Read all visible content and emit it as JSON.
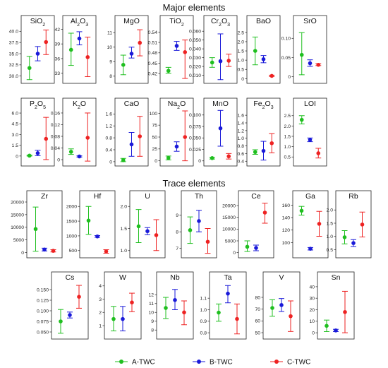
{
  "section_titles": {
    "major": "Major elements",
    "trace": "Trace elements"
  },
  "legend": [
    {
      "label": "A-TWC",
      "color": "#1fbf1f"
    },
    {
      "label": "B-TWC",
      "color": "#1a1ad9"
    },
    {
      "label": "C-TWC",
      "color": "#ee2222"
    }
  ],
  "chart_data": [
    {
      "type": "scatter",
      "title": "SiO2",
      "title_parts": [
        {
          "t": "SiO"
        },
        {
          "t": "2",
          "sub": true
        }
      ],
      "ylim": [
        29,
        41
      ],
      "yticks": [
        "30.0",
        "32.5",
        "35.0",
        "37.5",
        "40.0"
      ],
      "series": [
        {
          "name": "A-TWC",
          "mean": 31.8,
          "low": 29.2,
          "high": 34.4
        },
        {
          "name": "B-TWC",
          "mean": 35.0,
          "low": 33.4,
          "high": 36.6
        },
        {
          "name": "C-TWC",
          "mean": 37.6,
          "low": 34.8,
          "high": 40.3
        }
      ]
    },
    {
      "type": "scatter",
      "title": "Al2O3",
      "title_parts": [
        {
          "t": "Al"
        },
        {
          "t": "2",
          "sub": true
        },
        {
          "t": "O"
        },
        {
          "t": "3",
          "sub": true
        }
      ],
      "ylim": [
        31.5,
        42.5
      ],
      "yticks": [
        "33",
        "36",
        "39",
        "42"
      ],
      "series": [
        {
          "name": "A-TWC",
          "mean": 37.8,
          "low": 34.6,
          "high": 41.2
        },
        {
          "name": "B-TWC",
          "mean": 40.1,
          "low": 38.8,
          "high": 41.5
        },
        {
          "name": "C-TWC",
          "mean": 36.3,
          "low": 32.3,
          "high": 40.4
        }
      ]
    },
    {
      "type": "scatter",
      "title": "MgO",
      "title_parts": [
        {
          "t": "MgO"
        }
      ],
      "ylim": [
        7.7,
        11.4
      ],
      "yticks": [
        "8",
        "9",
        "10",
        "11"
      ],
      "series": [
        {
          "name": "A-TWC",
          "mean": 8.78,
          "low": 8.1,
          "high": 9.45
        },
        {
          "name": "B-TWC",
          "mean": 9.55,
          "low": 9.25,
          "high": 10.0
        },
        {
          "name": "C-TWC",
          "mean": 10.3,
          "low": 9.4,
          "high": 11.2
        }
      ]
    },
    {
      "type": "scatter",
      "title": "TiO2",
      "title_parts": [
        {
          "t": "TiO"
        },
        {
          "t": "2",
          "sub": true
        }
      ],
      "ylim": [
        0.4,
        0.555
      ],
      "yticks": [
        "0.42",
        "0.45",
        "0.48",
        "0.51",
        "0.54"
      ],
      "series": [
        {
          "name": "A-TWC",
          "mean": 0.428,
          "low": 0.421,
          "high": 0.438
        },
        {
          "name": "B-TWC",
          "mean": 0.5,
          "low": 0.487,
          "high": 0.513
        },
        {
          "name": "C-TWC",
          "mean": 0.482,
          "low": 0.406,
          "high": 0.517
        }
      ]
    },
    {
      "type": "scatter",
      "title": "Cr2O3",
      "title_parts": [
        {
          "t": "Cr"
        },
        {
          "t": "2",
          "sub": true
        },
        {
          "t": "O"
        },
        {
          "t": "3",
          "sub": true
        }
      ],
      "ylim": [
        0.004,
        0.065
      ],
      "yticks": [
        "0.010",
        "0.020",
        "0.030",
        "0.040",
        "0.050",
        "0.060"
      ],
      "series": [
        {
          "name": "A-TWC",
          "mean": 0.0245,
          "low": 0.019,
          "high": 0.03
        },
        {
          "name": "B-TWC",
          "mean": 0.026,
          "low": 0.005,
          "high": 0.057
        },
        {
          "name": "C-TWC",
          "mean": 0.0265,
          "low": 0.02,
          "high": 0.034
        }
      ]
    },
    {
      "type": "scatter",
      "title": "BaO",
      "title_parts": [
        {
          "t": "BaO"
        }
      ],
      "ylim": [
        -0.1,
        2.8
      ],
      "yticks": [
        "0",
        "0.5",
        "1.0",
        "1.5",
        "2.0",
        "2.5"
      ],
      "series": [
        {
          "name": "A-TWC",
          "mean": 1.5,
          "low": 0.75,
          "high": 2.25
        },
        {
          "name": "B-TWC",
          "mean": 1.05,
          "low": 0.86,
          "high": 1.25
        },
        {
          "name": "C-TWC",
          "mean": 0.15,
          "low": 0.12,
          "high": 0.19
        }
      ]
    },
    {
      "type": "scatter",
      "title": "SrO",
      "title_parts": [
        {
          "t": "SrO"
        }
      ],
      "ylim": [
        -0.01,
        0.13
      ],
      "yticks": [
        "0",
        "0.05",
        "0.10"
      ],
      "series": [
        {
          "name": "A-TWC",
          "mean": 0.057,
          "low": 0.005,
          "high": 0.115
        },
        {
          "name": "B-TWC",
          "mean": 0.035,
          "low": 0.027,
          "high": 0.044
        },
        {
          "name": "C-TWC",
          "mean": 0.031,
          "low": 0.029,
          "high": 0.034
        }
      ]
    },
    {
      "type": "scatter",
      "title": "P2O5",
      "title_parts": [
        {
          "t": "P"
        },
        {
          "t": "2",
          "sub": true
        },
        {
          "t": "O"
        },
        {
          "t": "5",
          "sub": true
        }
      ],
      "ylim": [
        -1,
        6.5
      ],
      "yticks": [
        "0",
        "1.5",
        "3.0",
        "4.5",
        "6.0"
      ],
      "series": [
        {
          "name": "A-TWC",
          "mean": 0.05,
          "low": 0.0,
          "high": 0.12
        },
        {
          "name": "B-TWC",
          "mean": 0.4,
          "low": 0.05,
          "high": 0.8
        },
        {
          "name": "C-TWC",
          "mean": 2.4,
          "low": -0.5,
          "high": 5.4
        }
      ]
    },
    {
      "type": "scatter",
      "title": "K2O",
      "title_parts": [
        {
          "t": "K"
        },
        {
          "t": "2",
          "sub": true
        },
        {
          "t": "O"
        }
      ],
      "ylim": [
        -0.012,
        0.172
      ],
      "yticks": [
        "0",
        "0.04",
        "0.08",
        "0.12",
        "0.16"
      ],
      "series": [
        {
          "name": "A-TWC",
          "mean": 0.027,
          "low": 0.018,
          "high": 0.037
        },
        {
          "name": "B-TWC",
          "mean": 0.011,
          "low": 0.009,
          "high": 0.013
        },
        {
          "name": "C-TWC",
          "mean": 0.075,
          "low": -0.005,
          "high": 0.16
        }
      ]
    },
    {
      "type": "scatter",
      "title": "CaO",
      "title_parts": [
        {
          "t": "CaO"
        }
      ],
      "ylim": [
        -0.05,
        1.75
      ],
      "yticks": [
        "0",
        "0.4",
        "0.8",
        "1.2",
        "1.6"
      ],
      "series": [
        {
          "name": "A-TWC",
          "mean": 0.05,
          "low": 0.0,
          "high": 0.11
        },
        {
          "name": "B-TWC",
          "mean": 0.58,
          "low": 0.18,
          "high": 0.98
        },
        {
          "name": "C-TWC",
          "mean": 0.85,
          "low": 0.18,
          "high": 1.52
        }
      ]
    },
    {
      "type": "scatter",
      "title": "Na2O",
      "title_parts": [
        {
          "t": "Na"
        },
        {
          "t": "2",
          "sub": true
        },
        {
          "t": "O"
        }
      ],
      "ylim": [
        -5,
        108
      ],
      "yticks": [
        "0",
        "25",
        "50",
        "75",
        "100"
      ],
      "series": [
        {
          "name": "A-TWC",
          "mean": 6,
          "low": 2,
          "high": 10
        },
        {
          "name": "B-TWC",
          "mean": 30,
          "low": 20,
          "high": 40
        },
        {
          "name": "C-TWC",
          "mean": 50,
          "low": 0,
          "high": 105
        }
      ]
    },
    {
      "type": "scatter",
      "title": "MnO",
      "title_parts": [
        {
          "t": "MnO"
        }
      ],
      "ylim": [
        -0.005,
        0.112
      ],
      "yticks": [
        "0",
        "0.025",
        "0.050",
        "0.075",
        "0.100"
      ],
      "series": [
        {
          "name": "A-TWC",
          "mean": 0.006,
          "low": 0.004,
          "high": 0.008
        },
        {
          "name": "B-TWC",
          "mean": 0.071,
          "low": 0.032,
          "high": 0.11
        },
        {
          "name": "C-TWC",
          "mean": 0.01,
          "low": 0.004,
          "high": 0.016
        }
      ]
    },
    {
      "type": "scatter",
      "title": "Fe2O3",
      "title_parts": [
        {
          "t": "Fe"
        },
        {
          "t": "2",
          "sub": true
        },
        {
          "t": "O"
        },
        {
          "t": "3",
          "sub": true
        }
      ],
      "ylim": [
        0.35,
        1.75
      ],
      "yticks": [
        "0.4",
        "0.6",
        "0.8",
        "1.0",
        "1.2",
        "1.4",
        "1.6"
      ],
      "series": [
        {
          "name": "A-TWC",
          "mean": 0.64,
          "low": 0.58,
          "high": 0.7
        },
        {
          "name": "B-TWC",
          "mean": 0.67,
          "low": 0.43,
          "high": 0.92
        },
        {
          "name": "C-TWC",
          "mean": 0.87,
          "low": 0.62,
          "high": 1.12
        }
      ]
    },
    {
      "type": "scatter",
      "title": "LOI",
      "title_parts": [
        {
          "t": "LOI"
        }
      ],
      "ylim": [
        0.2,
        2.8
      ],
      "yticks": [
        "0.5",
        "1.0",
        "1.5",
        "2.0",
        "2.5"
      ],
      "series": [
        {
          "name": "A-TWC",
          "mean": 2.3,
          "low": 2.1,
          "high": 2.5
        },
        {
          "name": "B-TWC",
          "mean": 1.33,
          "low": 1.24,
          "high": 1.42
        },
        {
          "name": "C-TWC",
          "mean": 0.68,
          "low": 0.45,
          "high": 0.92
        }
      ]
    },
    {
      "type": "scatter",
      "title": "Zr",
      "title_parts": [
        {
          "t": "Zr"
        }
      ],
      "ylim": [
        -1000,
        20000
      ],
      "yticks": [
        "0",
        "5000",
        "10000",
        "15000",
        "20000"
      ],
      "series": [
        {
          "name": "A-TWC",
          "mean": 9300,
          "low": 500,
          "high": 18000
        },
        {
          "name": "B-TWC",
          "mean": 1150,
          "low": 600,
          "high": 1700
        },
        {
          "name": "C-TWC",
          "mean": 650,
          "low": 200,
          "high": 1100
        }
      ]
    },
    {
      "type": "scatter",
      "title": "Hf",
      "title_parts": [
        {
          "t": "Hf"
        }
      ],
      "ylim": [
        350,
        2150
      ],
      "yticks": [
        "500",
        "1000",
        "1500",
        "2000"
      ],
      "series": [
        {
          "name": "A-TWC",
          "mean": 1520,
          "low": 1050,
          "high": 2000
        },
        {
          "name": "B-TWC",
          "mean": 980,
          "low": 950,
          "high": 1010
        },
        {
          "name": "C-TWC",
          "mean": 470,
          "low": 410,
          "high": 530
        }
      ]
    },
    {
      "type": "scatter",
      "title": "U",
      "title_parts": [
        {
          "t": "U"
        }
      ],
      "ylim": [
        0.9,
        2.1
      ],
      "yticks": [
        "1.0",
        "1.5",
        "2.0"
      ],
      "series": [
        {
          "name": "A-TWC",
          "mean": 1.55,
          "low": 1.18,
          "high": 1.93
        },
        {
          "name": "B-TWC",
          "mean": 1.44,
          "low": 1.36,
          "high": 1.52
        },
        {
          "name": "C-TWC",
          "mean": 1.35,
          "low": 1.0,
          "high": 1.7
        }
      ]
    },
    {
      "type": "scatter",
      "title": "Th",
      "title_parts": [
        {
          "t": "Th"
        }
      ],
      "ylim": [
        6.6,
        9.8
      ],
      "yticks": [
        "7",
        "8",
        "9"
      ],
      "series": [
        {
          "name": "A-TWC",
          "mean": 8.1,
          "low": 7.3,
          "high": 8.9
        },
        {
          "name": "B-TWC",
          "mean": 8.65,
          "low": 8.0,
          "high": 9.3
        },
        {
          "name": "C-TWC",
          "mean": 7.4,
          "low": 6.7,
          "high": 8.2
        }
      ]
    },
    {
      "type": "scatter",
      "title": "Ce",
      "title_parts": [
        {
          "t": "Ce"
        }
      ],
      "ylim": [
        -1000,
        21500
      ],
      "yticks": [
        "0",
        "5000",
        "10000",
        "15000",
        "20000"
      ],
      "series": [
        {
          "name": "A-TWC",
          "mean": 2500,
          "low": 500,
          "high": 5000
        },
        {
          "name": "B-TWC",
          "mean": 2000,
          "low": 800,
          "high": 3200
        },
        {
          "name": "C-TWC",
          "mean": 17000,
          "low": 12500,
          "high": 21000
        }
      ]
    },
    {
      "type": "scatter",
      "title": "Ga",
      "title_parts": [
        {
          "t": "Ga"
        }
      ],
      "ylim": [
        80,
        165
      ],
      "yticks": [
        "100",
        "120",
        "140",
        "160"
      ],
      "series": [
        {
          "name": "A-TWC",
          "mean": 151,
          "low": 144,
          "high": 158
        },
        {
          "name": "B-TWC",
          "mean": 90,
          "low": 88,
          "high": 92
        },
        {
          "name": "C-TWC",
          "mean": 130,
          "low": 110,
          "high": 150
        }
      ]
    },
    {
      "type": "scatter",
      "title": "Rb",
      "title_parts": [
        {
          "t": "Rb"
        }
      ],
      "ylim": [
        0.3,
        2.3
      ],
      "yticks": [
        "0.5",
        "1.0",
        "1.5",
        "2.0"
      ],
      "series": [
        {
          "name": "A-TWC",
          "mean": 0.97,
          "low": 0.72,
          "high": 1.22
        },
        {
          "name": "B-TWC",
          "mean": 0.75,
          "low": 0.62,
          "high": 0.88
        },
        {
          "name": "C-TWC",
          "mean": 1.45,
          "low": 0.98,
          "high": 1.92
        }
      ]
    },
    {
      "type": "scatter",
      "title": "Cs",
      "title_parts": [
        {
          "t": "Cs"
        }
      ],
      "ylim": [
        0.04,
        0.165
      ],
      "yticks": [
        "0.050",
        "0.075",
        "0.100",
        "0.125",
        "0.150"
      ],
      "series": [
        {
          "name": "A-TWC",
          "mean": 0.075,
          "low": 0.047,
          "high": 0.103
        },
        {
          "name": "B-TWC",
          "mean": 0.09,
          "low": 0.083,
          "high": 0.097
        },
        {
          "name": "C-TWC",
          "mean": 0.133,
          "low": 0.106,
          "high": 0.16
        }
      ]
    },
    {
      "type": "scatter",
      "title": "W",
      "title_parts": [
        {
          "t": "W"
        }
      ],
      "ylim": [
        0.2,
        4.2
      ],
      "yticks": [
        "1",
        "2",
        "3",
        "4"
      ],
      "series": [
        {
          "name": "A-TWC",
          "mean": 1.5,
          "low": 0.6,
          "high": 2.45
        },
        {
          "name": "B-TWC",
          "mean": 1.5,
          "low": 0.6,
          "high": 2.45
        },
        {
          "name": "C-TWC",
          "mean": 2.75,
          "low": 2.05,
          "high": 3.45
        }
      ]
    },
    {
      "type": "scatter",
      "title": "Nb",
      "title_parts": [
        {
          "t": "Nb"
        }
      ],
      "ylim": [
        7.3,
        13.3
      ],
      "yticks": [
        "8",
        "9",
        "10",
        "11",
        "12"
      ],
      "series": [
        {
          "name": "A-TWC",
          "mean": 10.5,
          "low": 9.3,
          "high": 11.7
        },
        {
          "name": "B-TWC",
          "mean": 11.4,
          "low": 10.3,
          "high": 12.6
        },
        {
          "name": "C-TWC",
          "mean": 10.0,
          "low": 8.6,
          "high": 11.3
        }
      ]
    },
    {
      "type": "scatter",
      "title": "Ta",
      "title_parts": [
        {
          "t": "Ta"
        }
      ],
      "ylim": [
        0.77,
        1.23
      ],
      "yticks": [
        "0.8",
        "0.9",
        "1.0",
        "1.1"
      ],
      "series": [
        {
          "name": "A-TWC",
          "mean": 0.975,
          "low": 0.9,
          "high": 1.05
        },
        {
          "name": "B-TWC",
          "mean": 1.14,
          "low": 1.06,
          "high": 1.21
        },
        {
          "name": "C-TWC",
          "mean": 0.92,
          "low": 0.79,
          "high": 1.05
        }
      ]
    },
    {
      "type": "scatter",
      "title": "V",
      "title_parts": [
        {
          "t": "V"
        }
      ],
      "ylim": [
        47,
        92
      ],
      "yticks": [
        "50",
        "60",
        "70",
        "80"
      ],
      "series": [
        {
          "name": "A-TWC",
          "mean": 71,
          "low": 64,
          "high": 78
        },
        {
          "name": "B-TWC",
          "mean": 73.5,
          "low": 68,
          "high": 79
        },
        {
          "name": "C-TWC",
          "mean": 64,
          "low": 51,
          "high": 77
        }
      ]
    },
    {
      "type": "scatter",
      "title": "Sn",
      "title_parts": [
        {
          "t": "Sn"
        }
      ],
      "ylim": [
        -3,
        43
      ],
      "yticks": [
        "0",
        "10",
        "20",
        "30",
        "40"
      ],
      "series": [
        {
          "name": "A-TWC",
          "mean": 6,
          "low": 1,
          "high": 11
        },
        {
          "name": "B-TWC",
          "mean": 2,
          "low": 1,
          "high": 3
        },
        {
          "name": "C-TWC",
          "mean": 18,
          "low": 0,
          "high": 36
        }
      ]
    }
  ]
}
